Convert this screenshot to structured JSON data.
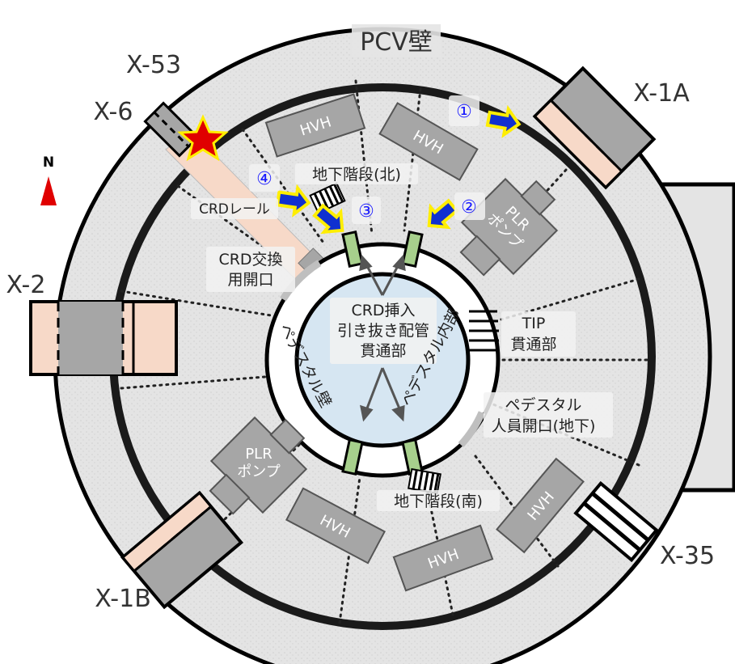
{
  "title": "PCV壁",
  "penetrations": {
    "x53": "X-53",
    "x6": "X-6",
    "x1a": "X-1A",
    "x2": "X-2",
    "x1b": "X-1B",
    "x35": "X-35"
  },
  "north": "N",
  "equipment": {
    "hvh": [
      "HVH",
      "HVH",
      "HVH",
      "HVH",
      "HVH"
    ],
    "plr_n": [
      "PLR",
      "ポンプ"
    ],
    "plr_s": [
      "PLR",
      "ポンプ"
    ]
  },
  "labels": {
    "stairs_north": "地下階段(北)",
    "stairs_south": "地下階段(南)",
    "crd_rail": "CRDレール",
    "crd_exchange": [
      "CRD交換",
      "用開口"
    ],
    "crd_insert": [
      "CRD挿入",
      "引き抜き配管",
      "貫通部"
    ],
    "tip": [
      "TIP",
      "貫通部"
    ],
    "pedestal_opening": [
      "ペデスタル",
      "人員開口(地下)"
    ],
    "pedestal_wall": "ペデスタル壁",
    "pedestal_inner": "ペデスタル内部"
  },
  "route_markers": [
    "①",
    "②",
    "③",
    "④"
  ],
  "colors": {
    "floor": "#e2e2e2",
    "pedestal_inner": "#d6e6f2",
    "equipment": "#a6a6a6",
    "penetration_sleeve": "#f7d9c8",
    "arrow_fill": "#1030d0",
    "arrow_outline": "#ffee00",
    "star_fill": "#e00000",
    "north_arrow": "#e00000",
    "marker_text": "#1a1aff",
    "grating": "#a7d08c"
  },
  "icons": [
    "north-arrow-icon",
    "star-icon",
    "arrow-icon"
  ]
}
